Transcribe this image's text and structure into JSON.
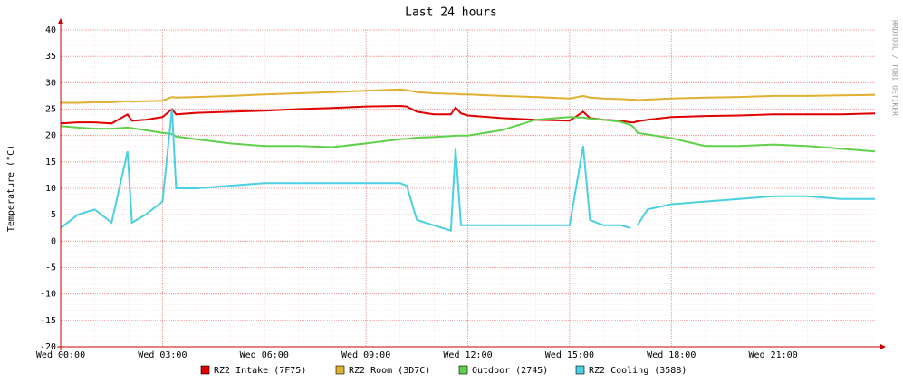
{
  "chart_data": {
    "type": "line",
    "title": "Last 24 hours",
    "y_label": "Temperature (°C)",
    "side_label": "RRDTOOL / TOBI OETIKER",
    "x": [
      0,
      0.5,
      1,
      1.5,
      1.97,
      2.1,
      2.5,
      3,
      3.28,
      3.4,
      4,
      5,
      6,
      7,
      8,
      9,
      10,
      10.2,
      10.5,
      11,
      11.5,
      11.64,
      11.8,
      12,
      13,
      14,
      15,
      15.4,
      15.6,
      16,
      16.5,
      16.8,
      16.9,
      17,
      17.3,
      18,
      19,
      20,
      21,
      22,
      23,
      24
    ],
    "xlim": [
      0,
      24
    ],
    "xticks": [
      {
        "value": 0,
        "label": "Wed 00:00"
      },
      {
        "value": 3,
        "label": "Wed 03:00"
      },
      {
        "value": 6,
        "label": "Wed 06:00"
      },
      {
        "value": 9,
        "label": "Wed 09:00"
      },
      {
        "value": 12,
        "label": "Wed 12:00"
      },
      {
        "value": 15,
        "label": "Wed 15:00"
      },
      {
        "value": 18,
        "label": "Wed 18:00"
      },
      {
        "value": 21,
        "label": "Wed 21:00"
      }
    ],
    "ylim": [
      -20,
      40
    ],
    "yticks": [
      -20,
      -15,
      -10,
      -5,
      0,
      5,
      10,
      15,
      20,
      25,
      30,
      35,
      40
    ],
    "grid": true,
    "series": [
      {
        "name": "RZ2 Intake (7F75)",
        "color": "#e00000",
        "values": [
          22.3,
          22.5,
          22.5,
          22.3,
          24,
          22.8,
          23,
          23.5,
          25,
          24,
          24.3,
          24.5,
          24.7,
          25,
          25.2,
          25.5,
          25.6,
          25.5,
          24.5,
          24,
          24,
          25.3,
          24.2,
          23.8,
          23.3,
          23,
          22.8,
          24.5,
          23.3,
          23,
          22.8,
          22.5,
          22.5,
          22.7,
          23,
          23.5,
          23.7,
          23.8,
          24,
          24,
          24,
          24.2
        ]
      },
      {
        "name": "RZ2 Room (3D7C)",
        "color": "#e0b030",
        "values": [
          26.2,
          26.2,
          26.3,
          26.3,
          26.5,
          26.4,
          26.5,
          26.6,
          27.3,
          27.2,
          27.3,
          27.5,
          27.8,
          28,
          28.2,
          28.5,
          28.7,
          28.6,
          28.2,
          28,
          27.9,
          27.9,
          27.8,
          27.8,
          27.5,
          27.3,
          27,
          27.5,
          27.2,
          27,
          26.9,
          26.8,
          26.8,
          26.7,
          26.8,
          27,
          27.2,
          27.3,
          27.5,
          27.5,
          27.6,
          27.7
        ]
      },
      {
        "name": "Outdoor (2745)",
        "color": "#5ed04a",
        "values": [
          21.8,
          21.5,
          21.3,
          21.3,
          21.5,
          21.4,
          21,
          20.5,
          20.3,
          19.8,
          19.3,
          18.5,
          18,
          18,
          17.8,
          18.5,
          19.3,
          19.4,
          19.6,
          19.7,
          19.9,
          20,
          20,
          20,
          21,
          23,
          23.5,
          23.4,
          23.2,
          23,
          22.6,
          22,
          21.5,
          20.5,
          20.2,
          19.5,
          18,
          18,
          18.3,
          18,
          17.5,
          17
        ]
      },
      {
        "name": "RZ2 Cooling (3588)",
        "color": "#4ad0e0",
        "values": [
          2.5,
          5,
          6,
          3.5,
          17,
          3.5,
          5,
          7.5,
          25,
          10,
          10,
          10.5,
          11,
          11,
          11,
          11,
          11,
          10.5,
          4,
          3,
          2,
          17.5,
          3,
          3,
          3,
          3,
          3,
          18,
          4,
          3,
          3,
          2.5,
          null,
          3,
          6,
          7,
          7.5,
          8,
          8.5,
          8.5,
          8,
          8
        ]
      }
    ]
  }
}
